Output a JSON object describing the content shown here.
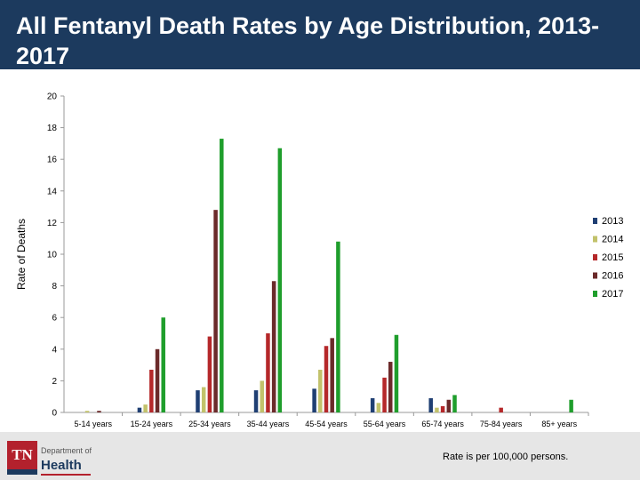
{
  "header": {
    "title": "All Fentanyl Death Rates by Age Distribution, 2013-2017"
  },
  "footer": {
    "logo_mark": "TN",
    "logo_dept": "Department of",
    "logo_name": "Health",
    "note": "Rate is per 100,000 persons."
  },
  "colors": {
    "title_bar": "#1c3a5e",
    "2013": "#1f3f73",
    "2014": "#c2c26b",
    "2015": "#b5282a",
    "2016": "#6b2a2a",
    "2017": "#1f9e2c"
  },
  "chart_data": {
    "type": "bar",
    "title": "All Fentanyl Death Rates by Age Distribution, 2013-2017",
    "xlabel": "",
    "ylabel": "Rate of Deaths",
    "ylim": [
      0,
      20
    ],
    "yticks": [
      0,
      2,
      4,
      6,
      8,
      10,
      12,
      14,
      16,
      18,
      20
    ],
    "grid": false,
    "legend_position": "right",
    "categories": [
      "5-14 years",
      "15-24 years",
      "25-34 years",
      "35-44 years",
      "45-54 years",
      "55-64 years",
      "65-74 years",
      "75-84 years",
      "85+ years"
    ],
    "series": [
      {
        "name": "2013",
        "values": [
          0.0,
          0.3,
          1.4,
          1.4,
          1.5,
          0.9,
          0.9,
          0.0,
          0.0
        ]
      },
      {
        "name": "2014",
        "values": [
          0.1,
          0.5,
          1.6,
          2.0,
          2.7,
          0.6,
          0.3,
          0.0,
          0.0
        ]
      },
      {
        "name": "2015",
        "values": [
          0.0,
          2.7,
          4.8,
          5.0,
          4.2,
          2.2,
          0.4,
          0.3,
          0.0
        ]
      },
      {
        "name": "2016",
        "values": [
          0.1,
          4.0,
          12.8,
          8.3,
          4.7,
          3.2,
          0.8,
          0.0,
          0.0
        ]
      },
      {
        "name": "2017",
        "values": [
          0.0,
          6.0,
          17.3,
          16.7,
          10.8,
          4.9,
          1.1,
          0.0,
          0.8
        ]
      }
    ]
  }
}
